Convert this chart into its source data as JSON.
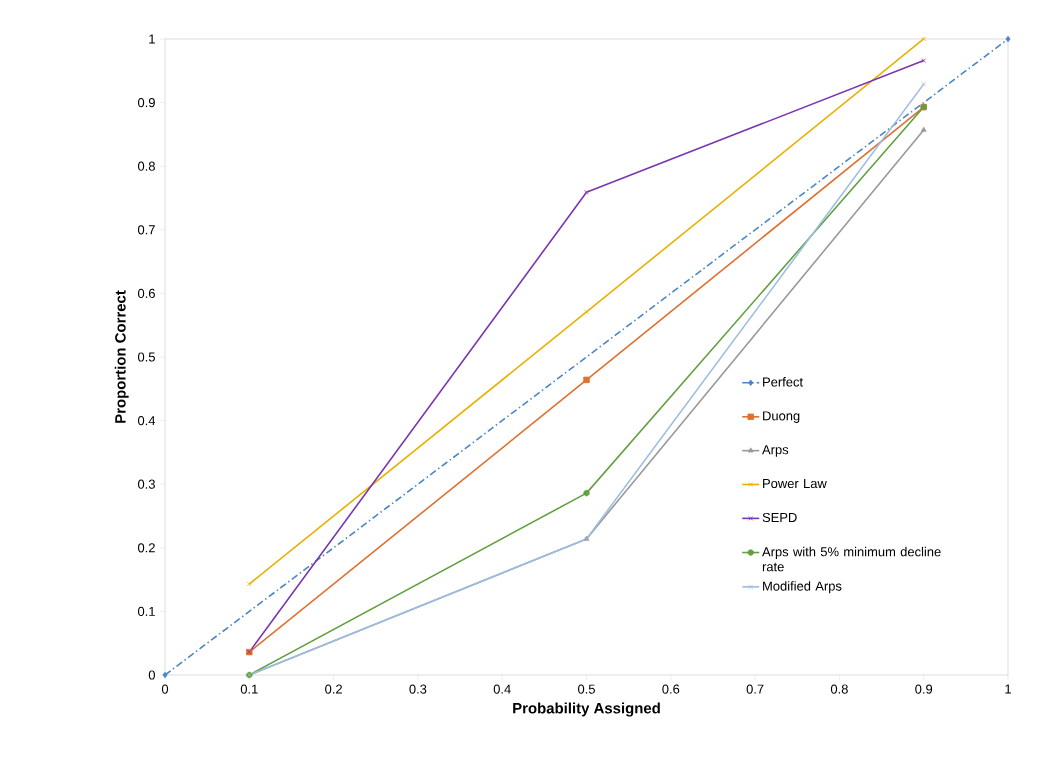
{
  "chart_data": {
    "type": "line",
    "xlabel": "Probability Assigned",
    "ylabel": "Proportion Correct",
    "xlim": [
      0,
      1
    ],
    "ylim": [
      0,
      1
    ],
    "xticks": [
      0,
      0.1,
      0.2,
      0.3,
      0.4,
      0.5,
      0.6,
      0.7,
      0.8,
      0.9,
      1
    ],
    "yticks": [
      0,
      0.1,
      0.2,
      0.3,
      0.4,
      0.5,
      0.6,
      0.7,
      0.8,
      0.9,
      1
    ],
    "grid": false,
    "legend": "right",
    "series": [
      {
        "name": "Perfect",
        "color": "#4a86c5",
        "x": [
          0,
          1
        ],
        "values": [
          0,
          1
        ],
        "marker": "diamond",
        "line_style": "dashed"
      },
      {
        "name": "Duong",
        "color": "#e07030",
        "x": [
          0.1,
          0.5,
          0.9
        ],
        "values": [
          0.036,
          0.464,
          0.893
        ],
        "marker": "square",
        "line_style": "solid"
      },
      {
        "name": "Arps",
        "color": "#999999",
        "x": [
          0.1,
          0.5,
          0.9
        ],
        "values": [
          0,
          0.214,
          0.857
        ],
        "marker": "triangle",
        "line_style": "solid"
      },
      {
        "name": "Power Law",
        "color": "#eab000",
        "x": [
          0.1,
          0.5,
          0.9
        ],
        "values": [
          0.143,
          0.571,
          1
        ],
        "marker": "cross",
        "line_style": "solid"
      },
      {
        "name": "SEPD",
        "color": "#7a35b0",
        "x": [
          0.1,
          0.5,
          0.9
        ],
        "values": [
          0.036,
          0.759,
          0.966
        ],
        "marker": "cross",
        "line_style": "solid"
      },
      {
        "name": "Arps with 5% minimum decline rate",
        "color": "#62a040",
        "x": [
          0.1,
          0.5,
          0.9
        ],
        "values": [
          0,
          0.286,
          0.893
        ],
        "marker": "circle",
        "line_style": "solid"
      },
      {
        "name": "Modified Arps",
        "color": "#9dbde3",
        "x": [
          0.1,
          0.5,
          0.9
        ],
        "values": [
          0,
          0.214,
          0.929
        ],
        "marker": "cross",
        "line_style": "solid"
      }
    ]
  }
}
